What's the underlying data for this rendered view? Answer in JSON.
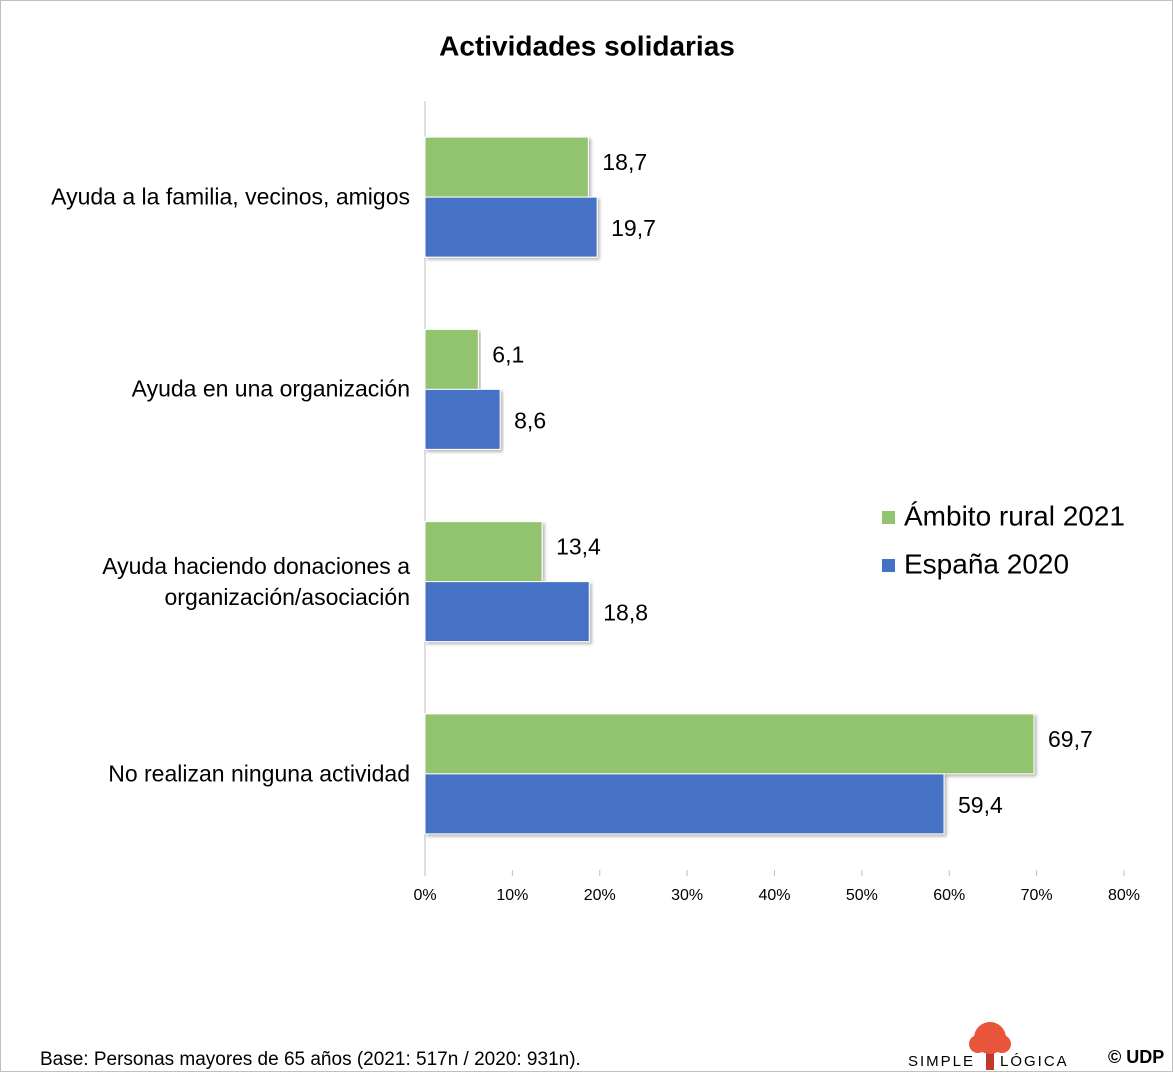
{
  "chart_data": {
    "type": "bar",
    "orientation": "horizontal",
    "title": "Actividades solidarias",
    "categories": [
      "Ayuda a la familia, vecinos, amigos",
      "Ayuda en una organización",
      "Ayuda haciendo donaciones a organización/asociación",
      "No realizan ninguna actividad"
    ],
    "series": [
      {
        "name": "Ámbito rural 2021",
        "color": "#92c470",
        "values": [
          18.7,
          6.1,
          13.4,
          69.7
        ],
        "value_labels": [
          "18,7",
          "6,1",
          "13,4",
          "69,7"
        ]
      },
      {
        "name": "España 2020",
        "color": "#4472c4",
        "values": [
          19.7,
          8.6,
          18.8,
          59.4
        ],
        "value_labels": [
          "19,7",
          "8,6",
          "18,8",
          "59,4"
        ]
      }
    ],
    "xlim": [
      0,
      80
    ],
    "xticks": [
      {
        "value": 0,
        "label": "0%"
      },
      {
        "value": 10,
        "label": "10%"
      },
      {
        "value": 20,
        "label": "20%"
      },
      {
        "value": 30,
        "label": "30%"
      },
      {
        "value": 40,
        "label": "40%"
      },
      {
        "value": 50,
        "label": "50%"
      },
      {
        "value": 60,
        "label": "60%"
      },
      {
        "value": 70,
        "label": "70%"
      },
      {
        "value": 80,
        "label": "80%"
      }
    ],
    "grid": false,
    "legend": "right"
  },
  "footnote": "Base: Personas mayores de 65 años (2021: 517n / 2020: 931n).",
  "logo": {
    "left": "SIMPLE",
    "right": "LÓGICA",
    "mark": "© UDP"
  }
}
